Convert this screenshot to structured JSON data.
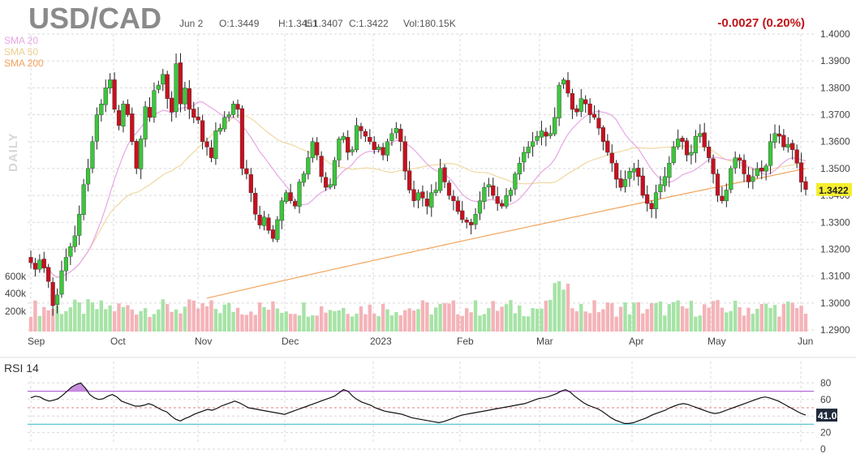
{
  "header": {
    "symbol": "USD/CAD",
    "date": "Jun 2",
    "open": "O:1.3449",
    "high": "H:1.3451",
    "low": "L:1.3407",
    "close": "C:1.3422",
    "volume": "Vol:180.15K",
    "change": "-0.0027 (0.20%)",
    "change_color": "#c0141a"
  },
  "legend": [
    {
      "label": "SMA 20",
      "color": "#e7a6e3"
    },
    {
      "label": "SMA 50",
      "color": "#f0d8a0"
    },
    {
      "label": "SMA 200",
      "color": "#f3a25a"
    }
  ],
  "interval_label": "DAILY",
  "rsi_label": "RSI 14",
  "colors": {
    "up": "#3cc63c",
    "down": "#c8101e",
    "vol_up": "#a6e3a6",
    "vol_down": "#f4b3b8",
    "rsi_line": "#111111",
    "rsi_upper": "#b36ad6",
    "rsi_lower": "#5bc4d6",
    "price_tag": "#f5ee2d"
  },
  "chart_data": [
    {
      "type": "candlestick",
      "title": "USD/CAD",
      "xlabel": "",
      "ylabel": "",
      "ylim": [
        1.29,
        1.4
      ],
      "y_ticks": [
        "1.4000",
        "1.3900",
        "1.3800",
        "1.3700",
        "1.3600",
        "1.3500",
        "1.3400",
        "1.3300",
        "1.3200",
        "1.3100",
        "1.3000",
        "1.2900"
      ],
      "x_ticks": [
        "Sep",
        "Oct",
        "Nov",
        "Dec",
        "2023",
        "Feb",
        "Mar",
        "Apr",
        "May",
        "Jun"
      ],
      "last_price": "1.3422",
      "grid": true,
      "close_series": [
        1.315,
        1.3125,
        1.316,
        1.313,
        1.308,
        1.299,
        1.303,
        1.312,
        1.317,
        1.321,
        1.325,
        1.333,
        1.344,
        1.35,
        1.36,
        1.37,
        1.374,
        1.38,
        1.383,
        1.372,
        1.366,
        1.374,
        1.37,
        1.36,
        1.35,
        1.361,
        1.373,
        1.369,
        1.379,
        1.381,
        1.385,
        1.376,
        1.371,
        1.389,
        1.374,
        1.38,
        1.372,
        1.369,
        1.368,
        1.36,
        1.358,
        1.354,
        1.364,
        1.365,
        1.369,
        1.37,
        1.374,
        1.372,
        1.35,
        1.348,
        1.341,
        1.333,
        1.329,
        1.332,
        1.327,
        1.324,
        1.331,
        1.338,
        1.341,
        1.338,
        1.336,
        1.345,
        1.348,
        1.354,
        1.36,
        1.355,
        1.347,
        1.343,
        1.344,
        1.353,
        1.361,
        1.362,
        1.356,
        1.357,
        1.366,
        1.364,
        1.362,
        1.36,
        1.357,
        1.358,
        1.355,
        1.36,
        1.363,
        1.365,
        1.36,
        1.349,
        1.342,
        1.338,
        1.341,
        1.339,
        1.336,
        1.341,
        1.342,
        1.35,
        1.345,
        1.34,
        1.338,
        1.334,
        1.331,
        1.33,
        1.329,
        1.333,
        1.338,
        1.343,
        1.344,
        1.34,
        1.337,
        1.336,
        1.34,
        1.342,
        1.348,
        1.352,
        1.356,
        1.358,
        1.36,
        1.362,
        1.364,
        1.362,
        1.363,
        1.369,
        1.381,
        1.383,
        1.378,
        1.372,
        1.371,
        1.376,
        1.374,
        1.37,
        1.369,
        1.365,
        1.36,
        1.356,
        1.352,
        1.346,
        1.343,
        1.346,
        1.349,
        1.35,
        1.347,
        1.34,
        1.337,
        1.335,
        1.341,
        1.344,
        1.347,
        1.352,
        1.358,
        1.361,
        1.36,
        1.355,
        1.356,
        1.362,
        1.363,
        1.358,
        1.354,
        1.348,
        1.34,
        1.338,
        1.342,
        1.35,
        1.354,
        1.353,
        1.348,
        1.345,
        1.347,
        1.35,
        1.349,
        1.351,
        1.36,
        1.363,
        1.362,
        1.358,
        1.359,
        1.357,
        1.352,
        1.3449,
        1.3422
      ],
      "rsi": {
        "values": [
          62,
          64,
          63,
          60,
          58,
          59,
          61,
          65,
          70,
          75,
          78,
          80,
          74,
          66,
          62,
          60,
          61,
          64,
          66,
          63,
          58,
          56,
          54,
          52,
          52,
          53,
          55,
          53,
          50,
          47,
          45,
          40,
          36,
          34,
          37,
          39,
          42,
          44,
          46,
          48,
          47,
          49,
          52,
          54,
          56,
          58,
          56,
          53,
          50,
          49,
          48,
          47,
          46,
          45,
          44,
          43,
          42,
          44,
          46,
          48,
          50,
          52,
          54,
          56,
          58,
          60,
          62,
          64,
          68,
          72,
          70,
          64,
          60,
          57,
          55,
          53,
          50,
          48,
          46,
          45,
          44,
          43,
          42,
          40,
          38,
          37,
          36,
          35,
          34,
          33,
          32,
          33,
          35,
          37,
          39,
          41,
          42,
          43,
          44,
          45,
          46,
          47,
          48,
          49,
          50,
          51,
          52,
          53,
          54,
          55,
          57,
          59,
          61,
          62,
          63,
          65,
          67,
          70,
          72,
          69,
          64,
          60,
          56,
          53,
          51,
          49,
          46,
          42,
          38,
          35,
          33,
          31,
          31,
          32,
          34,
          36,
          38,
          41,
          43,
          45,
          47,
          50,
          52,
          54,
          55,
          54,
          52,
          50,
          48,
          46,
          44,
          43,
          44,
          46,
          48,
          50,
          52,
          54,
          56,
          58,
          60,
          62,
          63,
          62,
          60,
          58,
          55,
          52,
          49,
          46,
          43,
          41.08
        ],
        "ylim": [
          0,
          100
        ],
        "y_ticks": [
          "80",
          "60",
          "40",
          "20",
          "0"
        ],
        "upper": 70,
        "lower": 30,
        "last_value": "41.08"
      },
      "volume": {
        "y_ticks": [
          "600k",
          "400k",
          "200k"
        ]
      }
    }
  ]
}
